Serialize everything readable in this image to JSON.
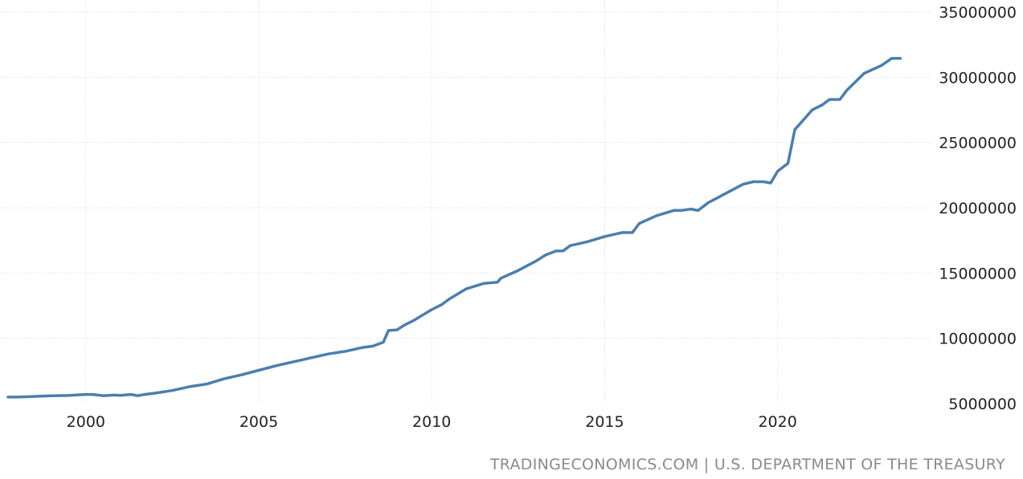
{
  "chart_data": {
    "type": "line",
    "title": "",
    "xlabel": "",
    "ylabel": "",
    "xlim": [
      1997.75,
      2024.4
    ],
    "ylim": [
      5000000,
      35000000
    ],
    "x_ticks": [
      2000,
      2005,
      2010,
      2015,
      2020
    ],
    "x_tick_labels": [
      "2000",
      "2005",
      "2010",
      "2015",
      "2020"
    ],
    "y_ticks": [
      5000000,
      10000000,
      15000000,
      20000000,
      25000000,
      30000000,
      35000000
    ],
    "y_tick_labels": [
      "5000000",
      "10000000",
      "15000000",
      "20000000",
      "25000000",
      "30000000",
      "35000000"
    ],
    "grid": true,
    "line_color": "#4a7fad",
    "series": [
      {
        "x": [
          1997.75,
          1998.0,
          1998.5,
          1999.0,
          1999.5,
          2000.0,
          2000.2,
          2000.5,
          2000.8,
          2001.0,
          2001.3,
          2001.5,
          2001.7,
          2002.0,
          2002.5,
          2003.0,
          2003.5,
          2004.0,
          2004.5,
          2005.0,
          2005.5,
          2006.0,
          2006.5,
          2007.0,
          2007.5,
          2008.0,
          2008.3,
          2008.6,
          2008.75,
          2009.0,
          2009.2,
          2009.5,
          2010.0,
          2010.3,
          2010.5,
          2011.0,
          2011.5,
          2011.9,
          2012.0,
          2012.5,
          2013.0,
          2013.3,
          2013.6,
          2013.8,
          2014.0,
          2014.5,
          2015.0,
          2015.5,
          2015.8,
          2016.0,
          2016.5,
          2017.0,
          2017.2,
          2017.5,
          2017.7,
          2018.0,
          2018.5,
          2019.0,
          2019.3,
          2019.6,
          2019.8,
          2020.0,
          2020.2,
          2020.3,
          2020.5,
          2020.8,
          2021.0,
          2021.3,
          2021.5,
          2021.8,
          2022.0,
          2022.5,
          2023.0,
          2023.3,
          2023.55
        ],
        "values": [
          5500000,
          5500000,
          5550000,
          5600000,
          5620000,
          5700000,
          5700000,
          5600000,
          5650000,
          5630000,
          5700000,
          5600000,
          5700000,
          5800000,
          6000000,
          6300000,
          6500000,
          6900000,
          7200000,
          7550000,
          7900000,
          8200000,
          8500000,
          8800000,
          9000000,
          9300000,
          9400000,
          9700000,
          10600000,
          10650000,
          11000000,
          11400000,
          12200000,
          12600000,
          13000000,
          13800000,
          14200000,
          14300000,
          14600000,
          15200000,
          15900000,
          16400000,
          16700000,
          16700000,
          17100000,
          17400000,
          17800000,
          18100000,
          18100000,
          18800000,
          19400000,
          19800000,
          19800000,
          19900000,
          19800000,
          20400000,
          21100000,
          21800000,
          22000000,
          22000000,
          21900000,
          22800000,
          23200000,
          23400000,
          26000000,
          26900000,
          27500000,
          27900000,
          28300000,
          28300000,
          29000000,
          30300000,
          30900000,
          31450000,
          31450000
        ]
      }
    ]
  },
  "source_text": "TRADINGECONOMICS.COM | U.S. DEPARTMENT OF THE TREASURY"
}
